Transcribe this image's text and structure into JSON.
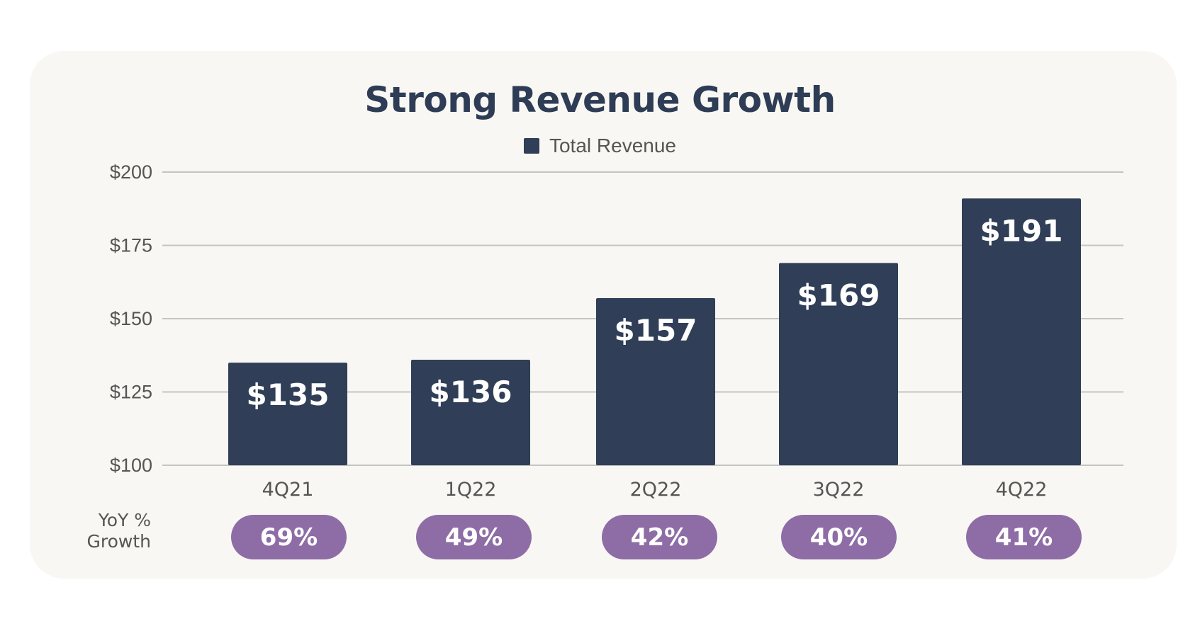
{
  "chart_data": {
    "type": "bar",
    "title": "Strong Revenue Growth",
    "legend": [
      "Total Revenue"
    ],
    "legend_placement": "top",
    "categories": [
      "4Q21",
      "1Q22",
      "2Q22",
      "3Q22",
      "4Q22"
    ],
    "series": [
      {
        "name": "Total Revenue",
        "values": [
          135,
          136,
          157,
          169,
          191
        ]
      }
    ],
    "data_labels": [
      "$135",
      "$136",
      "$157",
      "$169",
      "$191"
    ],
    "ylim": [
      100,
      200
    ],
    "yticks": [
      100,
      125,
      150,
      175,
      200
    ],
    "ytick_labels": [
      "$100",
      "$125",
      "$150",
      "$175",
      "$200"
    ],
    "grid": true,
    "yoy_label": [
      "YoY %",
      "Growth"
    ],
    "yoy_growth": [
      "69%",
      "49%",
      "42%",
      "40%",
      "41%"
    ],
    "colors": {
      "bar": "#303f57",
      "pill": "#8e6da6",
      "background": "#f9f7f3",
      "title": "#2e3d55"
    }
  }
}
